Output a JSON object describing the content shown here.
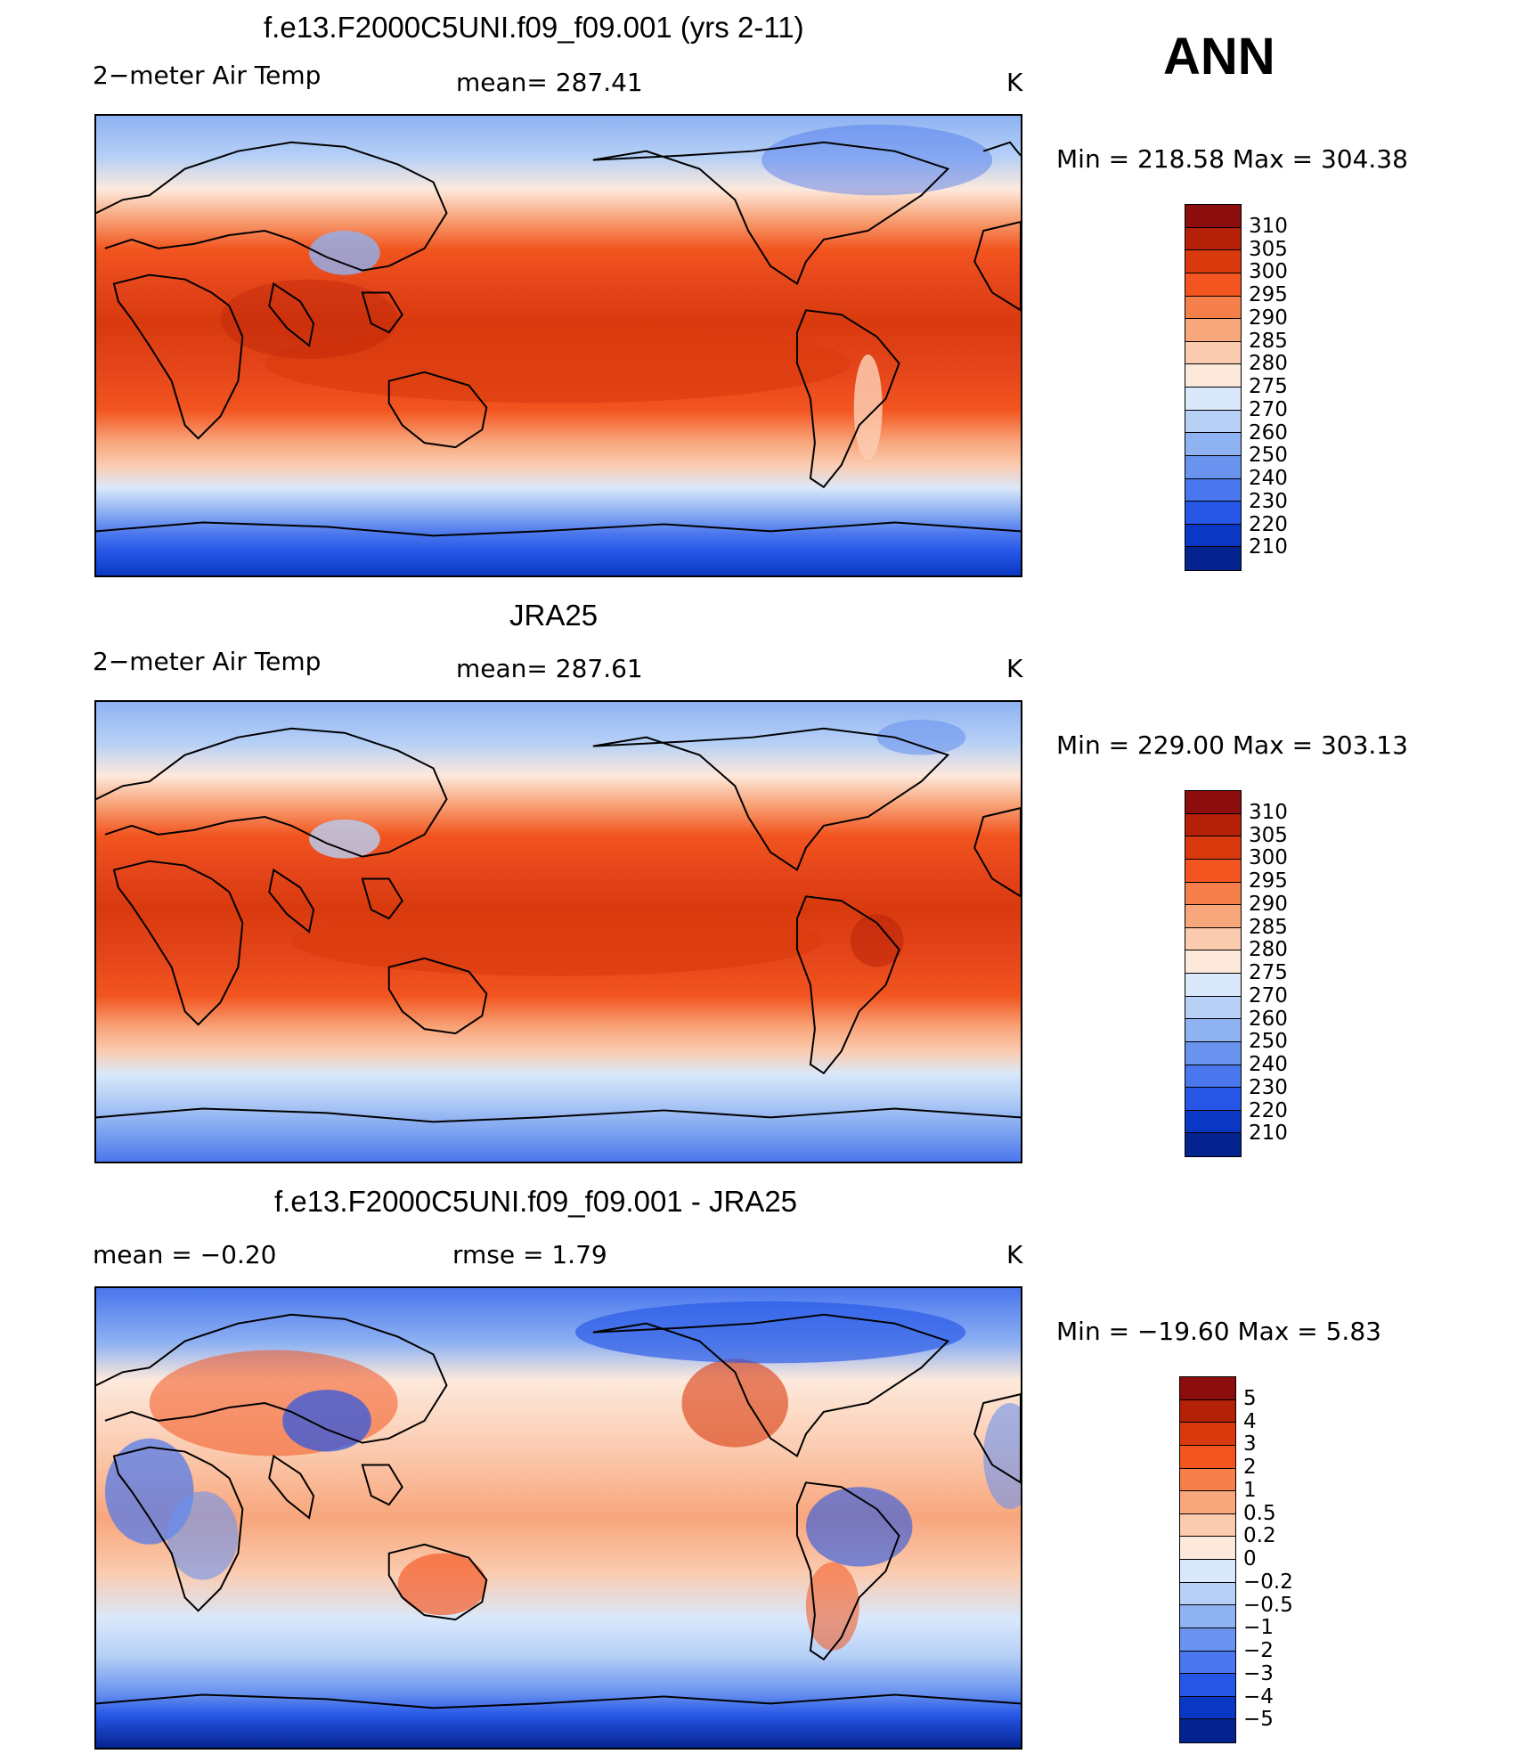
{
  "season": "ANN",
  "panels": [
    {
      "title": "f.e13.F2000C5UNI.f09_f09.001 (yrs 2-11)",
      "left_label": "2−meter Air Temp",
      "center_label": "mean=  287.41",
      "units": "K",
      "minmax": "Min  =  218.58  Max  =  304.38"
    },
    {
      "title": "JRA25",
      "left_label": "2−meter Air Temp",
      "center_label": "mean=  287.61",
      "units": "K",
      "minmax": "Min  =  229.00  Max  =  303.13"
    },
    {
      "title": "f.e13.F2000C5UNI.f09_f09.001 - JRA25",
      "left_label": "mean  =     −0.20",
      "center_label": "rmse  =      1.79",
      "units": "K",
      "minmax": "Min  =  −19.60  Max  =      5.83"
    }
  ],
  "colorbars": [
    {
      "labels": [
        "310",
        "305",
        "300",
        "295",
        "290",
        "285",
        "280",
        "275",
        "270",
        "260",
        "250",
        "240",
        "230",
        "220",
        "210"
      ],
      "colors": [
        "#8b0d0d",
        "#b52008",
        "#d83a0e",
        "#f2551f",
        "#f6804b",
        "#f8a67c",
        "#fbcbb0",
        "#fde9dc",
        "#d9e8fb",
        "#b6d0f6",
        "#8fb2f2",
        "#6a93ef",
        "#4a76ee",
        "#2556e6",
        "#0a38c4",
        "#05238f"
      ]
    },
    {
      "labels": [
        "310",
        "305",
        "300",
        "295",
        "290",
        "285",
        "280",
        "275",
        "270",
        "260",
        "250",
        "240",
        "230",
        "220",
        "210"
      ],
      "colors": [
        "#8b0d0d",
        "#b52008",
        "#d83a0e",
        "#f2551f",
        "#f6804b",
        "#f8a67c",
        "#fbcbb0",
        "#fde9dc",
        "#d9e8fb",
        "#b6d0f6",
        "#8fb2f2",
        "#6a93ef",
        "#4a76ee",
        "#2556e6",
        "#0a38c4",
        "#05238f"
      ]
    },
    {
      "labels": [
        "5",
        "4",
        "3",
        "2",
        "1",
        "0.5",
        "0.2",
        "0",
        "−0.2",
        "−0.5",
        "−1",
        "−2",
        "−3",
        "−4",
        "−5"
      ],
      "colors": [
        "#8b0d0d",
        "#b52008",
        "#d83a0e",
        "#f2551f",
        "#f6804b",
        "#f8a67c",
        "#fbcbb0",
        "#fde9dc",
        "#d9e8fb",
        "#b6d0f6",
        "#8fb2f2",
        "#6a93ef",
        "#4a76ee",
        "#2556e6",
        "#0a38c4",
        "#05238f"
      ]
    }
  ]
}
